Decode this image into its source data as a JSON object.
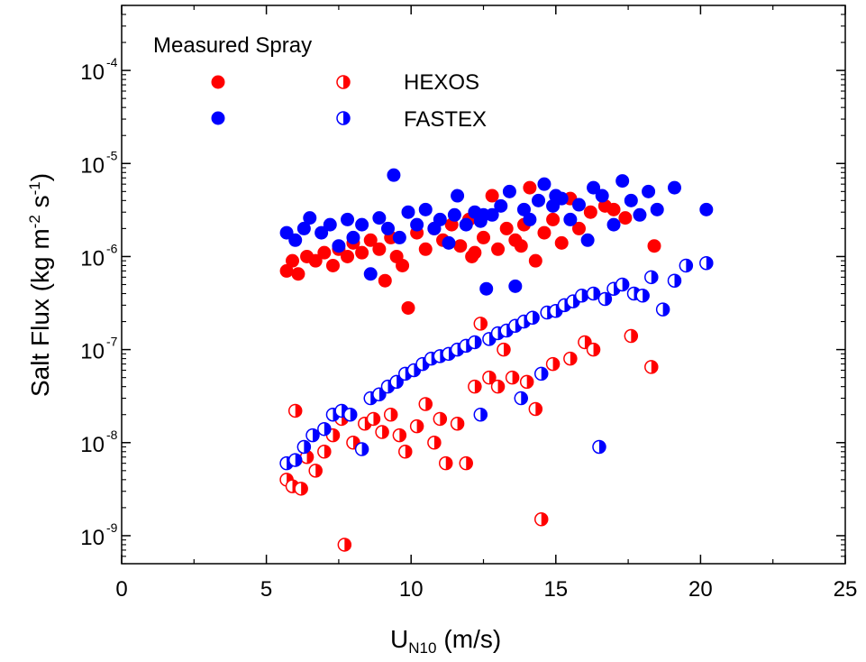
{
  "chart_data": {
    "type": "scatter",
    "xlabel_main": "U",
    "xlabel_sub": "N10",
    "xlabel_unit": "(m/s)",
    "ylabel_main": "Salt Flux (kg m",
    "ylabel_exp1": "-2",
    "ylabel_mid": " s",
    "ylabel_exp2": "-1",
    "ylabel_end": ")",
    "xlim": [
      0,
      25
    ],
    "x_ticks": [
      0,
      5,
      10,
      15,
      20,
      25
    ],
    "y_scale": "log",
    "ylim": [
      5e-10,
      0.0005
    ],
    "y_tick_exponents": [
      -9,
      -8,
      -7,
      -6,
      -5,
      -4
    ],
    "legend": {
      "header": "Measured  Spray",
      "entries": [
        {
          "label": "HEXOS",
          "color": "#ff0000"
        },
        {
          "label": "FASTEX",
          "color": "#0000ff"
        }
      ]
    },
    "colors": {
      "HEXOS": "#ff0000",
      "FASTEX": "#0000ff"
    },
    "series": [
      {
        "name": "HEXOS",
        "kind": "measured",
        "marker": "filled",
        "points": [
          [
            5.7,
            7e-07
          ],
          [
            5.9,
            9e-07
          ],
          [
            6.1,
            6.5e-07
          ],
          [
            6.4,
            1e-06
          ],
          [
            6.7,
            9e-07
          ],
          [
            7.0,
            1.1e-06
          ],
          [
            7.3,
            8e-07
          ],
          [
            7.5,
            1.2e-06
          ],
          [
            7.8,
            1e-06
          ],
          [
            8.0,
            1.4e-06
          ],
          [
            8.3,
            1.1e-06
          ],
          [
            8.6,
            1.5e-06
          ],
          [
            8.9,
            1.2e-06
          ],
          [
            9.1,
            5.5e-07
          ],
          [
            9.3,
            1.6e-06
          ],
          [
            9.5,
            1e-06
          ],
          [
            9.7,
            8e-07
          ],
          [
            9.9,
            2.8e-07
          ],
          [
            10.2,
            1.8e-06
          ],
          [
            10.5,
            1.2e-06
          ],
          [
            10.8,
            2e-06
          ],
          [
            11.1,
            1.5e-06
          ],
          [
            11.4,
            2.2e-06
          ],
          [
            11.7,
            1.3e-06
          ],
          [
            12.0,
            2.5e-06
          ],
          [
            12.2,
            1.1e-06
          ],
          [
            12.5,
            1.6e-06
          ],
          [
            12.8,
            4.5e-06
          ],
          [
            13.0,
            1.2e-06
          ],
          [
            13.3,
            2e-06
          ],
          [
            13.6,
            1.5e-06
          ],
          [
            13.9,
            2.2e-06
          ],
          [
            14.1,
            5.5e-06
          ],
          [
            14.3,
            9e-07
          ],
          [
            14.6,
            1.8e-06
          ],
          [
            14.9,
            2.5e-06
          ],
          [
            15.2,
            1.4e-06
          ],
          [
            15.5,
            4.2e-06
          ],
          [
            15.8,
            2e-06
          ],
          [
            16.2,
            3e-06
          ],
          [
            16.7,
            3.5e-06
          ],
          [
            17.0,
            3.2e-06
          ],
          [
            17.4,
            2.6e-06
          ],
          [
            18.4,
            1.3e-06
          ],
          [
            13.8,
            1.3e-06
          ],
          [
            12.1,
            1e-06
          ]
        ]
      },
      {
        "name": "HEXOS",
        "kind": "spray",
        "marker": "half",
        "points": [
          [
            5.7,
            4e-09
          ],
          [
            5.9,
            3.4e-09
          ],
          [
            6.2,
            3.2e-09
          ],
          [
            6.0,
            2.2e-08
          ],
          [
            6.4,
            7e-09
          ],
          [
            6.7,
            5e-09
          ],
          [
            7.0,
            8e-09
          ],
          [
            7.3,
            1.2e-08
          ],
          [
            7.6,
            1.8e-08
          ],
          [
            7.7,
            8e-10
          ],
          [
            8.0,
            1e-08
          ],
          [
            8.4,
            1.6e-08
          ],
          [
            8.7,
            1.8e-08
          ],
          [
            9.0,
            1.3e-08
          ],
          [
            9.3,
            2e-08
          ],
          [
            9.6,
            1.2e-08
          ],
          [
            9.8,
            8e-09
          ],
          [
            10.2,
            1.5e-08
          ],
          [
            10.5,
            2.6e-08
          ],
          [
            10.8,
            1e-08
          ],
          [
            11.0,
            1.8e-08
          ],
          [
            11.2,
            6e-09
          ],
          [
            11.6,
            1.6e-08
          ],
          [
            11.9,
            6e-09
          ],
          [
            12.2,
            4e-08
          ],
          [
            12.4,
            1.9e-07
          ],
          [
            12.7,
            5e-08
          ],
          [
            13.0,
            4e-08
          ],
          [
            13.5,
            5e-08
          ],
          [
            14.0,
            4.5e-08
          ],
          [
            14.3,
            2.3e-08
          ],
          [
            14.5,
            1.5e-09
          ],
          [
            14.9,
            7e-08
          ],
          [
            15.5,
            8e-08
          ],
          [
            16.0,
            1.2e-07
          ],
          [
            16.3,
            1e-07
          ],
          [
            17.6,
            1.4e-07
          ],
          [
            18.3,
            6.5e-08
          ],
          [
            13.2,
            1e-07
          ]
        ]
      },
      {
        "name": "FASTEX",
        "kind": "measured",
        "marker": "filled",
        "points": [
          [
            5.7,
            1.8e-06
          ],
          [
            6.0,
            1.5e-06
          ],
          [
            6.3,
            2e-06
          ],
          [
            6.5,
            2.6e-06
          ],
          [
            6.9,
            1.8e-06
          ],
          [
            7.2,
            2.2e-06
          ],
          [
            7.5,
            1.3e-06
          ],
          [
            7.8,
            2.5e-06
          ],
          [
            8.0,
            1.6e-06
          ],
          [
            8.3,
            2.2e-06
          ],
          [
            8.6,
            6.5e-07
          ],
          [
            8.9,
            2.6e-06
          ],
          [
            9.2,
            2e-06
          ],
          [
            9.4,
            7.5e-06
          ],
          [
            9.6,
            1.6e-06
          ],
          [
            9.9,
            3e-06
          ],
          [
            10.2,
            2.2e-06
          ],
          [
            10.5,
            3.2e-06
          ],
          [
            10.8,
            2e-06
          ],
          [
            11.0,
            2.5e-06
          ],
          [
            11.3,
            1.4e-06
          ],
          [
            11.6,
            4.5e-06
          ],
          [
            11.9,
            2.2e-06
          ],
          [
            12.2,
            3e-06
          ],
          [
            12.4,
            2.4e-06
          ],
          [
            12.6,
            4.5e-07
          ],
          [
            12.8,
            2.8e-06
          ],
          [
            13.1,
            3.5e-06
          ],
          [
            13.4,
            5e-06
          ],
          [
            13.6,
            4.8e-07
          ],
          [
            13.9,
            3.2e-06
          ],
          [
            14.1,
            2.5e-06
          ],
          [
            14.4,
            4e-06
          ],
          [
            14.6,
            6e-06
          ],
          [
            14.9,
            3.5e-06
          ],
          [
            15.2,
            4.2e-06
          ],
          [
            15.5,
            2.5e-06
          ],
          [
            15.8,
            3.6e-06
          ],
          [
            16.1,
            1.5e-06
          ],
          [
            16.3,
            5.5e-06
          ],
          [
            16.6,
            4.5e-06
          ],
          [
            17.0,
            2.2e-06
          ],
          [
            17.3,
            6.5e-06
          ],
          [
            17.6,
            4e-06
          ],
          [
            17.9,
            2.8e-06
          ],
          [
            18.2,
            5e-06
          ],
          [
            18.5,
            3.2e-06
          ],
          [
            19.1,
            5.5e-06
          ],
          [
            20.2,
            3.2e-06
          ],
          [
            12.5,
            2.8e-06
          ],
          [
            15.0,
            4.5e-06
          ],
          [
            11.5,
            2.8e-06
          ]
        ]
      },
      {
        "name": "FASTEX",
        "kind": "spray",
        "marker": "half",
        "points": [
          [
            5.7,
            6e-09
          ],
          [
            6.0,
            6.5e-09
          ],
          [
            6.3,
            9e-09
          ],
          [
            6.6,
            1.2e-08
          ],
          [
            7.0,
            1.4e-08
          ],
          [
            7.3,
            2e-08
          ],
          [
            7.6,
            2.2e-08
          ],
          [
            7.9,
            2e-08
          ],
          [
            8.3,
            8.5e-09
          ],
          [
            8.6,
            3e-08
          ],
          [
            8.9,
            3.3e-08
          ],
          [
            9.2,
            4e-08
          ],
          [
            9.5,
            4.5e-08
          ],
          [
            9.8,
            5.5e-08
          ],
          [
            10.1,
            6e-08
          ],
          [
            10.4,
            7e-08
          ],
          [
            10.7,
            8e-08
          ],
          [
            11.0,
            8.5e-08
          ],
          [
            11.3,
            9e-08
          ],
          [
            11.6,
            1e-07
          ],
          [
            11.9,
            1.1e-07
          ],
          [
            12.2,
            1.2e-07
          ],
          [
            12.4,
            2e-08
          ],
          [
            12.7,
            1.3e-07
          ],
          [
            13.0,
            1.5e-07
          ],
          [
            13.3,
            1.6e-07
          ],
          [
            13.6,
            1.8e-07
          ],
          [
            13.8,
            3e-08
          ],
          [
            13.9,
            2e-07
          ],
          [
            14.2,
            2.2e-07
          ],
          [
            14.5,
            5.5e-08
          ],
          [
            14.7,
            2.5e-07
          ],
          [
            15.0,
            2.6e-07
          ],
          [
            15.3,
            3e-07
          ],
          [
            15.6,
            3.3e-07
          ],
          [
            15.9,
            3.8e-07
          ],
          [
            16.3,
            4e-07
          ],
          [
            16.5,
            9e-09
          ],
          [
            16.7,
            3.5e-07
          ],
          [
            17.0,
            4.5e-07
          ],
          [
            17.3,
            5e-07
          ],
          [
            17.7,
            4e-07
          ],
          [
            18.0,
            3.8e-07
          ],
          [
            18.3,
            6e-07
          ],
          [
            18.7,
            2.7e-07
          ],
          [
            19.1,
            5.5e-07
          ],
          [
            19.5,
            8e-07
          ],
          [
            20.2,
            8.5e-07
          ]
        ]
      }
    ]
  }
}
